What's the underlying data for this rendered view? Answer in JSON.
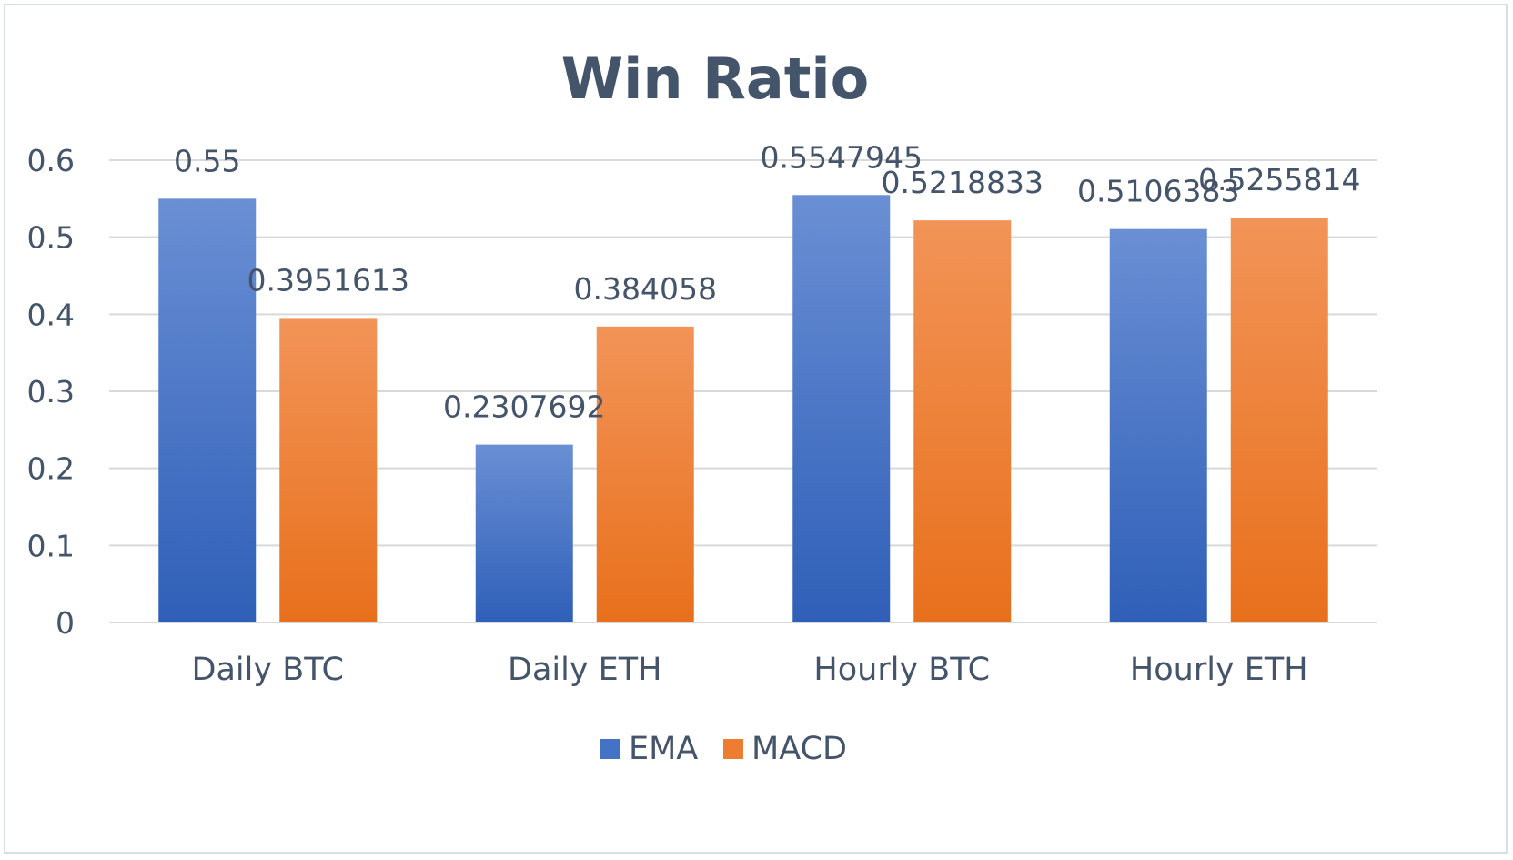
{
  "chart_data": {
    "type": "bar",
    "title": "Win Ratio",
    "xlabel": "",
    "ylabel": "",
    "categories": [
      "Daily BTC",
      "Daily ETH",
      "Hourly BTC",
      "Hourly ETH"
    ],
    "series": [
      {
        "name": "EMA",
        "color": "#4472c4",
        "values": [
          0.55,
          0.2307692,
          0.5547945,
          0.5106383
        ],
        "labels": [
          "0.55",
          "0.2307692",
          "0.5547945",
          "0.5106383"
        ]
      },
      {
        "name": "MACD",
        "color": "#ed7d31",
        "values": [
          0.3951613,
          0.384058,
          0.5218833,
          0.5255814
        ],
        "labels": [
          "0.3951613",
          "0.384058",
          "0.5218833",
          "0.5255814"
        ]
      }
    ],
    "ylim": [
      0,
      0.6
    ],
    "yticks": [
      "0",
      "0.1",
      "0.2",
      "0.3",
      "0.4",
      "0.5",
      "0.6"
    ],
    "grid": true,
    "legend": "bottom"
  }
}
